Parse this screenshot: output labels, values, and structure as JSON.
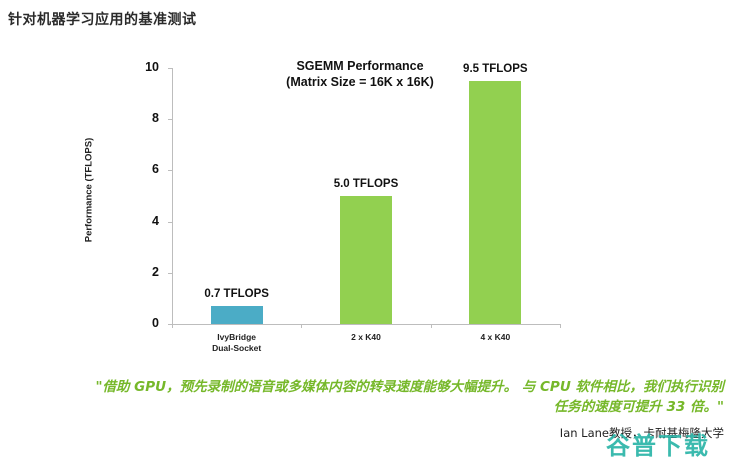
{
  "heading": "针对机器学习应用的基准测试",
  "chart_data": {
    "type": "bar",
    "title": "SGEMM Performance",
    "subtitle": "(Matrix Size = 16K x 16K)",
    "xlabel": "",
    "ylabel": "Performance (TFLOPS)",
    "ylim": [
      0,
      10
    ],
    "yticks": [
      "0",
      "2",
      "4",
      "6",
      "8",
      "10"
    ],
    "grid": false,
    "legend": null,
    "categories": [
      "IvyBridge Dual-Socket",
      "2 x K40",
      "4 x K40"
    ],
    "category_lines": [
      [
        "IvyBridge",
        "Dual-Socket"
      ],
      [
        "2 x K40"
      ],
      [
        "4 x K40"
      ]
    ],
    "values": [
      0.7,
      5.0,
      9.5
    ],
    "data_labels": [
      "0.7 TFLOPS",
      "5.0 TFLOPS",
      "9.5 TFLOPS"
    ],
    "colors": [
      "#4bacc6",
      "#92d050",
      "#92d050"
    ]
  },
  "quote": {
    "line1": "\"借助 GPU，预先录制的语音或多媒体内容的转录速度能够大幅提升。 与 CPU 软件相比，我们执行识别",
    "line2": "任务的速度可提升 33 倍。\""
  },
  "attribution": "Ian Lane教授，卡耐基梅隆大学",
  "watermark": "谷普下载"
}
